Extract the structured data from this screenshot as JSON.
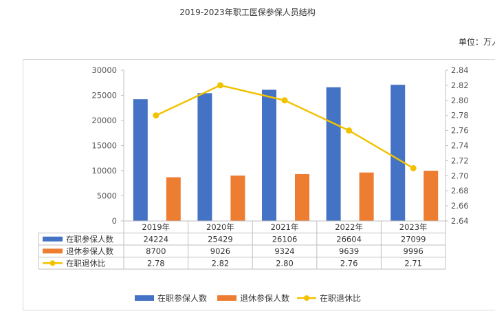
{
  "title": "2019-2023年职工医保参保人员结构",
  "unit_label": "单位：万人",
  "colors": {
    "employed": "#4472C4",
    "retired": "#ED7D31",
    "ratio": "#F2C200"
  },
  "chart_data": {
    "type": "bar",
    "title": "2019-2023年职工医保参保人员结构",
    "categories": [
      "2019年",
      "2020年",
      "2021年",
      "2022年",
      "2023年"
    ],
    "series": [
      {
        "name": "在职参保人数",
        "type": "bar",
        "axis": "left",
        "color": "#4472C4",
        "values": [
          24224,
          25429,
          26106,
          26604,
          27099
        ]
      },
      {
        "name": "退休参保人数",
        "type": "bar",
        "axis": "left",
        "color": "#ED7D31",
        "values": [
          8700,
          9026,
          9324,
          9639,
          9996
        ]
      },
      {
        "name": "在职退休比",
        "type": "line",
        "axis": "right",
        "color": "#F2C200",
        "values": [
          2.78,
          2.82,
          2.8,
          2.76,
          2.71
        ]
      }
    ],
    "y_left": {
      "range": [
        0,
        30000
      ],
      "ticks": [
        "0",
        "5000",
        "10000",
        "15000",
        "20000",
        "25000",
        "30000"
      ]
    },
    "y_right": {
      "range": [
        2.64,
        2.84
      ],
      "ticks": [
        "2.64",
        "2.66",
        "2.68",
        "2.70",
        "2.72",
        "2.74",
        "2.76",
        "2.78",
        "2.80",
        "2.82",
        "2.84"
      ]
    },
    "table_rows": [
      {
        "label": "在职参保人数",
        "cells": [
          "24224",
          "25429",
          "26106",
          "26604",
          "27099"
        ]
      },
      {
        "label": "退休参保人数",
        "cells": [
          "8700",
          "9026",
          "9324",
          "9639",
          "9996"
        ]
      },
      {
        "label": "在职退休比",
        "cells": [
          "2.78",
          "2.82",
          "2.80",
          "2.76",
          "2.71"
        ]
      }
    ],
    "legend": [
      "在职参保人数",
      "退休参保人数",
      "在职退休比"
    ],
    "legend_position": "bottom",
    "grid": false
  }
}
